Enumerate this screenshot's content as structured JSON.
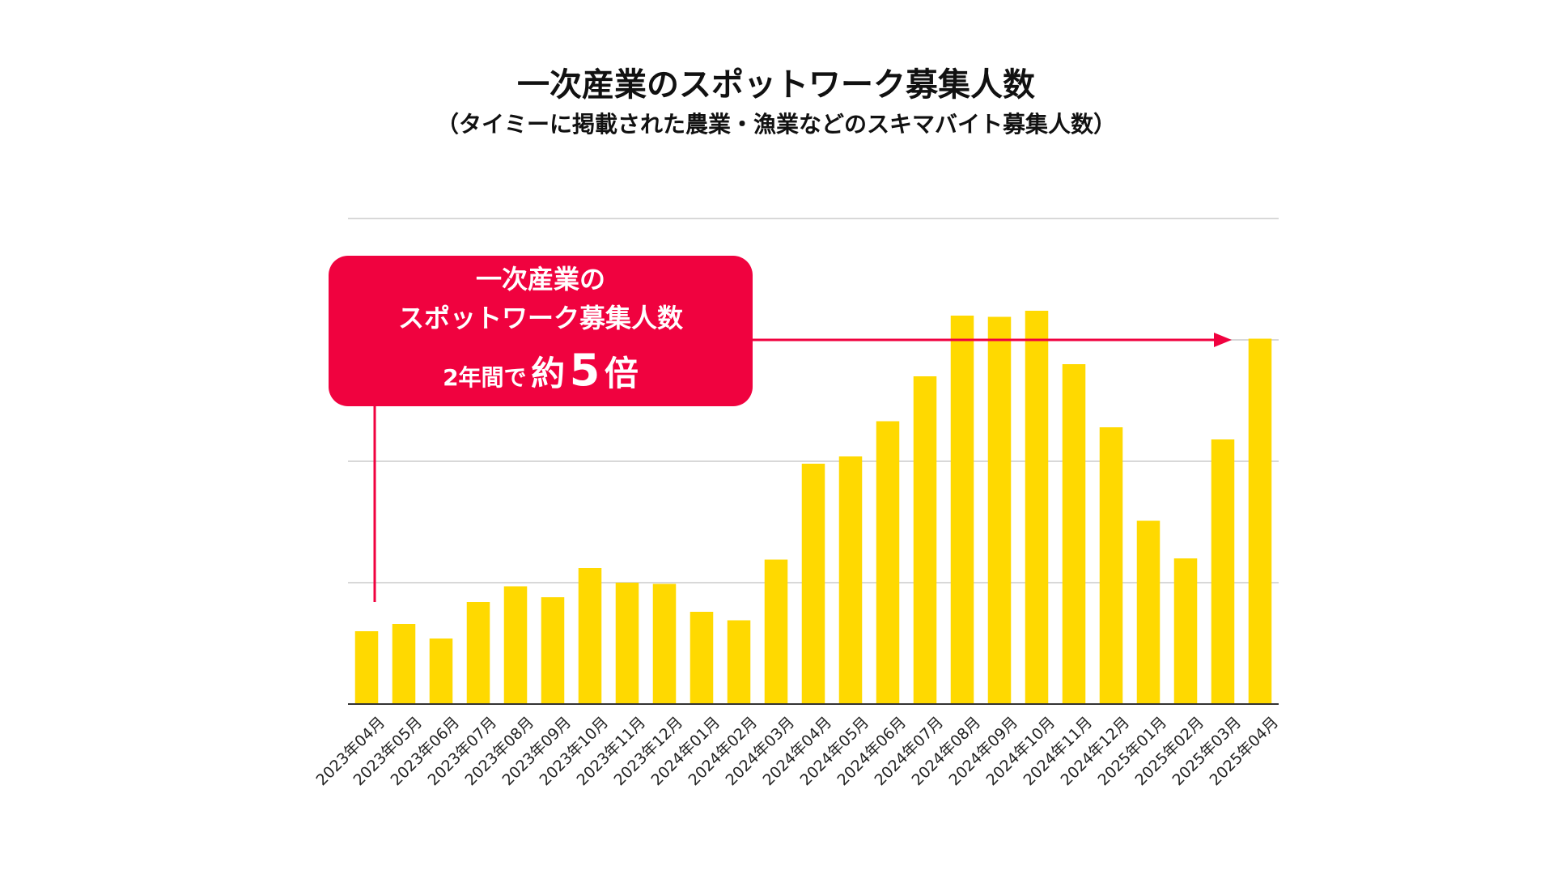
{
  "chart_data": {
    "type": "bar",
    "title": "一次産業のスポットワーク募集人数",
    "subtitle": "（タイミーに掲載された農業・漁業などのスキマバイト募集人数）",
    "categories": [
      "2023年04月",
      "2023年05月",
      "2023年06月",
      "2023年07月",
      "2023年08月",
      "2023年09月",
      "2023年10月",
      "2023年11月",
      "2023年12月",
      "2024年01月",
      "2024年02月",
      "2024年03月",
      "2024年04月",
      "2024年05月",
      "2024年06月",
      "2024年07月",
      "2024年08月",
      "2024年09月",
      "2024年10月",
      "2024年11月",
      "2024年12月",
      "2025年01月",
      "2025年02月",
      "2025年03月",
      "2025年04月"
    ],
    "values": [
      0.6,
      0.66,
      0.54,
      0.84,
      0.97,
      0.88,
      1.12,
      1.0,
      0.99,
      0.76,
      0.69,
      1.19,
      1.98,
      2.04,
      2.33,
      2.7,
      3.2,
      3.19,
      3.24,
      2.8,
      2.28,
      1.51,
      1.2,
      2.18,
      3.01
    ],
    "ylim": [
      0,
      4
    ],
    "grid": true,
    "bar_color": "#FFD900",
    "annotation": {
      "line1": "一次産業の",
      "line2": "スポットワーク募集人数",
      "line3_prefix": "2年間で",
      "line3_about": "約",
      "line3_number": "5",
      "line3_suffix": "倍",
      "color": "#F0023F"
    }
  }
}
